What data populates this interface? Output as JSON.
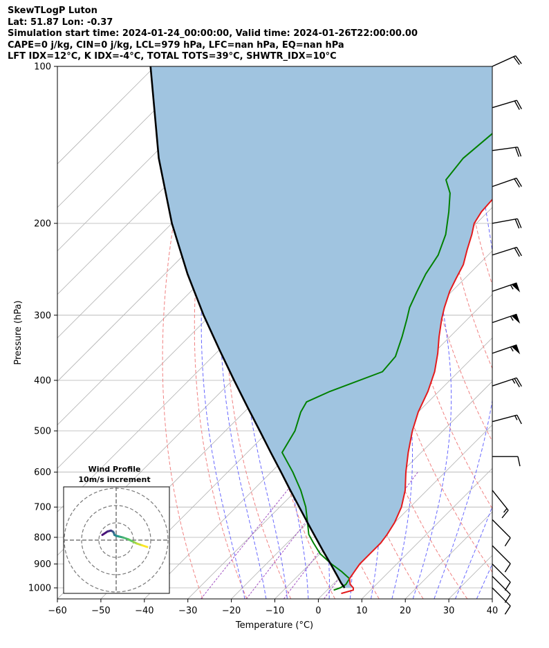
{
  "header": {
    "line1": "SkewTLogP Luton",
    "line2": "Lat: 51.87   Lon: -0.37",
    "line3": "Simulation start time: 2024-01-24_00:00:00, Valid time: 2024-01-26T22:00:00.00",
    "line4": "CAPE=0 j/kg, CIN=0 j/kg, LCL=979 hPa, LFC=nan hPa, EQ=nan hPa",
    "line5": "LFT IDX=12$^\\circ$C, K IDX=-4$^\\circ$C, TOTAL TOTS=39$^\\circ$C, SHWTR_IDX=10$^\\circ$C"
  },
  "chart_data": {
    "type": "line",
    "skew_t": true,
    "xlabel": "Temperature ($^\\circ$C)",
    "ylabel": "Pressure (hPa)",
    "xlim": [
      -60,
      40
    ],
    "ylim": [
      1050,
      100
    ],
    "y_scale": "log",
    "grid": true,
    "x_ticks": [
      -60,
      -50,
      -40,
      -30,
      -20,
      -10,
      0,
      10,
      20,
      30,
      40
    ],
    "x_tick_labels": [
      "−60",
      "−50",
      "−40",
      "−30",
      "−20",
      "−10",
      "0",
      "10",
      "20",
      "30",
      "40"
    ],
    "y_ticks": [
      1000,
      900,
      800,
      700,
      600,
      500,
      400,
      300,
      200,
      100
    ],
    "y_tick_labels": [
      "1000",
      "900",
      "800",
      "700",
      "600",
      "500",
      "400",
      "300",
      "200",
      "100"
    ],
    "colors": {
      "temperature": "#e41a1c",
      "dewpoint": "#008000",
      "parcel": "#000000",
      "fill": "#a0c4e0",
      "dry_adiabat": "#f08080",
      "moist_adiabat": "#6666ff",
      "mixing_ratio": "#a050c0",
      "isotherm": "#b0b0b0"
    },
    "series": [
      {
        "id": "temperature",
        "pressure": [
          1025,
          1010,
          1000,
          985,
          960,
          930,
          900,
          860,
          820,
          790,
          750,
          700,
          650,
          600,
          550,
          500,
          460,
          420,
          385,
          355,
          330,
          305,
          290,
          270,
          255,
          240,
          225,
          210,
          200,
          190,
          175,
          160,
          150,
          140,
          130,
          120,
          110,
          100
        ],
        "temp": [
          4,
          6,
          5.5,
          4,
          2.5,
          2,
          1.5,
          1.5,
          1.5,
          1,
          0,
          -2,
          -5,
          -9,
          -13,
          -17,
          -20,
          -22.5,
          -25.5,
          -29,
          -32.5,
          -36,
          -38,
          -40.5,
          -42,
          -43.5,
          -46,
          -48.5,
          -50.5,
          -51.5,
          -52,
          -53,
          -54,
          -55.5,
          -56,
          -57.5,
          -57.5,
          -58
        ]
      },
      {
        "id": "dewpoint",
        "pressure": [
          1010,
          1000,
          985,
          960,
          930,
          900,
          860,
          820,
          790,
          750,
          700,
          650,
          600,
          550,
          500,
          460,
          440,
          420,
          385,
          360,
          330,
          305,
          290,
          270,
          250,
          230,
          210,
          190,
          175,
          165,
          150,
          135,
          120,
          100
        ],
        "temp": [
          1.5,
          2.5,
          3,
          2.5,
          -1,
          -5,
          -10,
          -14,
          -17,
          -20,
          -24,
          -29,
          -35,
          -42,
          -44,
          -47,
          -48,
          -45,
          -37.5,
          -38,
          -41,
          -44,
          -46,
          -48,
          -50,
          -51.5,
          -54.5,
          -59,
          -63,
          -67,
          -68,
          -67,
          -66,
          -66
        ]
      },
      {
        "id": "parcel",
        "pressure": [
          1000,
          979,
          950,
          900,
          850,
          800,
          750,
          700,
          650,
          600,
          550,
          500,
          450,
          400,
          350,
          300,
          250,
          200,
          150,
          100
        ],
        "temp": [
          3.5,
          1.6,
          -0.8,
          -5.2,
          -9.9,
          -14.8,
          -20.0,
          -25.5,
          -31.4,
          -37.7,
          -44.6,
          -52.1,
          -60.4,
          -69.6,
          -79.9,
          -91.6,
          -104.8,
          -120.0,
          -138.0,
          -161.0
        ]
      }
    ],
    "wind_barbs": {
      "pressure": [
        100,
        120,
        145,
        170,
        200,
        230,
        270,
        310,
        355,
        410,
        480,
        560,
        650,
        740,
        830,
        900,
        950,
        1000
      ],
      "u": [
        -22,
        -20,
        -22,
        -20,
        -22,
        -22,
        -52,
        -52,
        -52,
        -24,
        -15,
        -10,
        -12,
        -10,
        -10,
        -10,
        -10,
        -10
      ],
      "v": [
        10,
        6,
        3,
        7,
        4,
        7,
        18,
        18,
        18,
        8,
        4,
        0,
        -15,
        -10,
        -10,
        -10,
        -10,
        -10
      ]
    },
    "hodograph": {
      "title": "Wind Profile\n10m/s increment",
      "ring_increment": 10,
      "u": [
        -8,
        -5,
        -3,
        -2,
        -1.5,
        -1,
        0,
        2,
        4,
        7,
        10,
        12,
        15,
        18
      ],
      "v": [
        3,
        5,
        5.5,
        5,
        4.5,
        3,
        2.5,
        2,
        1.5,
        0.5,
        -1,
        -2,
        -3,
        -4
      ]
    }
  }
}
